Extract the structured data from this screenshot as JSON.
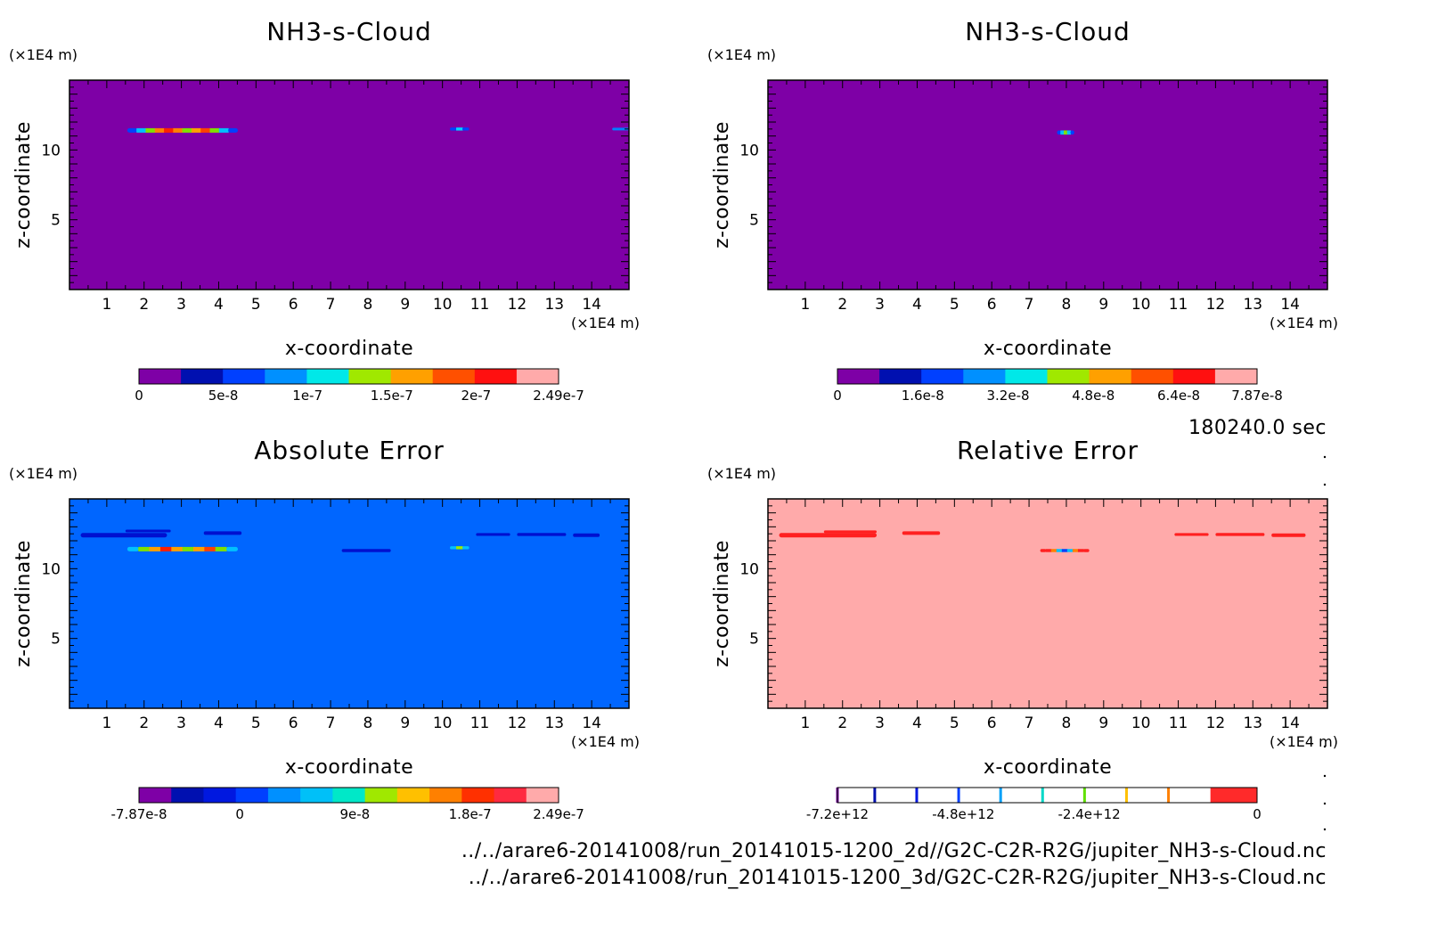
{
  "figure": {
    "time_label": "180240.0 sec",
    "files": [
      "../../arare6-20141008/run_20141015-1200_2d//G2C-C2R-R2G/jupiter_NH3-s-Cloud.nc",
      "../../arare6-20141008/run_20141015-1200_3d/G2C-C2R-R2G/jupiter_NH3-s-Cloud.nc"
    ]
  },
  "chart_data": [
    {
      "id": "p1",
      "type": "heatmap",
      "title": "NH3-s-Cloud",
      "xlabel": "x-coordinate",
      "ylabel": "z-coordinate",
      "x_unit": "(×1E4 m)",
      "y_unit": "(×1E4 m)",
      "xlim": [
        0,
        15
      ],
      "ylim": [
        0,
        15
      ],
      "x_ticks": [
        1,
        2,
        3,
        4,
        5,
        6,
        7,
        8,
        9,
        10,
        11,
        12,
        13,
        14
      ],
      "y_ticks": [
        5,
        10
      ],
      "background_color": "#7E00A6",
      "features": [
        {
          "x0": 1.55,
          "x1": 4.5,
          "z": 11.4,
          "dz": 0.32,
          "colors": [
            "#0040FF",
            "#00C0FF",
            "#80E000",
            "#FF8000",
            "#FF2000",
            "#FF8000",
            "#80E000",
            "#FFA000",
            "#FF4000",
            "#80E000",
            "#00C0FF",
            "#0040FF"
          ]
        },
        {
          "x0": 10.2,
          "x1": 10.7,
          "z": 11.5,
          "dz": 0.22,
          "colors": [
            "#0040FF",
            "#00D0FF",
            "#0040FF"
          ]
        },
        {
          "x0": 14.55,
          "x1": 15.0,
          "z": 11.5,
          "dz": 0.08,
          "colors": [
            "#0080FF"
          ]
        }
      ],
      "colorbar": {
        "type": "discrete",
        "colors": [
          "#7E00A6",
          "#0010B0",
          "#0040FF",
          "#0090FF",
          "#00E8E8",
          "#A0E800",
          "#FFA000",
          "#FF5000",
          "#FF1010",
          "#FFAAAA"
        ],
        "ticks": [
          {
            "label": "0",
            "frac": 0.0
          },
          {
            "label": "5e-8",
            "frac": 0.2008
          },
          {
            "label": "1e-7",
            "frac": 0.4016
          },
          {
            "label": "1.5e-7",
            "frac": 0.6024
          },
          {
            "label": "2e-7",
            "frac": 0.8032
          },
          {
            "label": "2.49e-7",
            "frac": 1.0
          }
        ]
      }
    },
    {
      "id": "p2",
      "type": "heatmap",
      "title": "NH3-s-Cloud",
      "xlabel": "x-coordinate",
      "ylabel": "z-coordinate",
      "x_unit": "(×1E4 m)",
      "y_unit": "(×1E4 m)",
      "xlim": [
        0,
        15
      ],
      "ylim": [
        0,
        15
      ],
      "x_ticks": [
        1,
        2,
        3,
        4,
        5,
        6,
        7,
        8,
        9,
        10,
        11,
        12,
        13,
        14
      ],
      "y_ticks": [
        5,
        10
      ],
      "background_color": "#7E00A6",
      "features": [
        {
          "x0": 7.75,
          "x1": 8.2,
          "z": 11.25,
          "dz": 0.3,
          "colors": [
            "#0040FF",
            "#00C0FF",
            "#80E000",
            "#00C0FF",
            "#0040FF"
          ]
        }
      ],
      "colorbar": {
        "type": "discrete",
        "colors": [
          "#7E00A6",
          "#0010B0",
          "#0040FF",
          "#0090FF",
          "#00E8E8",
          "#A0E800",
          "#FFA000",
          "#FF5000",
          "#FF1010",
          "#FFAAAA"
        ],
        "ticks": [
          {
            "label": "0",
            "frac": 0.0
          },
          {
            "label": "1.6e-8",
            "frac": 0.2033
          },
          {
            "label": "3.2e-8",
            "frac": 0.4066
          },
          {
            "label": "4.8e-8",
            "frac": 0.6099
          },
          {
            "label": "6.4e-8",
            "frac": 0.8132
          },
          {
            "label": "7.87e-8",
            "frac": 1.0
          }
        ]
      }
    },
    {
      "id": "p3",
      "type": "heatmap",
      "title": "Absolute Error",
      "xlabel": "x-coordinate",
      "ylabel": "z-coordinate",
      "x_unit": "(×1E4 m)",
      "y_unit": "(×1E4 m)",
      "xlim": [
        0,
        15
      ],
      "ylim": [
        0,
        15
      ],
      "x_ticks": [
        1,
        2,
        3,
        4,
        5,
        6,
        7,
        8,
        9,
        10,
        11,
        12,
        13,
        14
      ],
      "y_ticks": [
        5,
        10
      ],
      "background_color": "#0066FF",
      "features": [
        {
          "x0": 0.3,
          "x1": 2.6,
          "z": 12.4,
          "dz": 0.32,
          "colors": [
            "#0010D0"
          ]
        },
        {
          "x0": 1.5,
          "x1": 2.7,
          "z": 12.7,
          "dz": 0.18,
          "colors": [
            "#0010D0"
          ]
        },
        {
          "x0": 3.6,
          "x1": 4.6,
          "z": 12.55,
          "dz": 0.25,
          "colors": [
            "#0010D0"
          ]
        },
        {
          "x0": 1.55,
          "x1": 4.5,
          "z": 11.4,
          "dz": 0.32,
          "colors": [
            "#00C0FF",
            "#80E000",
            "#FFA000",
            "#FF2000",
            "#FFA000",
            "#80E000",
            "#FFA000",
            "#FF4000",
            "#80E000",
            "#00C0FF"
          ]
        },
        {
          "x0": 7.3,
          "x1": 8.6,
          "z": 11.3,
          "dz": 0.22,
          "colors": [
            "#0010D0"
          ]
        },
        {
          "x0": 10.2,
          "x1": 10.7,
          "z": 11.5,
          "dz": 0.22,
          "colors": [
            "#00C0FF",
            "#A0E800",
            "#00C0FF"
          ]
        },
        {
          "x0": 10.9,
          "x1": 11.8,
          "z": 12.45,
          "dz": 0.2,
          "colors": [
            "#0010D0"
          ]
        },
        {
          "x0": 12.0,
          "x1": 13.3,
          "z": 12.45,
          "dz": 0.22,
          "colors": [
            "#0010D0"
          ]
        },
        {
          "x0": 13.5,
          "x1": 14.2,
          "z": 12.4,
          "dz": 0.25,
          "colors": [
            "#0010D0"
          ]
        }
      ],
      "colorbar": {
        "type": "discrete",
        "colors": [
          "#7E00A6",
          "#0010B0",
          "#0018E0",
          "#0040FF",
          "#0090FF",
          "#00C0F8",
          "#00E8C8",
          "#A0E800",
          "#FFC000",
          "#FF8000",
          "#FF3000",
          "#FF2A40",
          "#FFAAAA"
        ],
        "ticks": [
          {
            "label": "-7.87e-8",
            "frac": 0.0
          },
          {
            "label": "0",
            "frac": 0.2401
          },
          {
            "label": "9e-8",
            "frac": 0.5146
          },
          {
            "label": "1.8e-7",
            "frac": 0.7891
          },
          {
            "label": "2.49e-7",
            "frac": 1.0
          }
        ]
      }
    },
    {
      "id": "p4",
      "type": "heatmap",
      "title": "Relative Error",
      "xlabel": "x-coordinate",
      "ylabel": "z-coordinate",
      "x_unit": "(×1E4 m)",
      "y_unit": "(×1E4 m)",
      "xlim": [
        0,
        15
      ],
      "ylim": [
        0,
        15
      ],
      "x_ticks": [
        1,
        2,
        3,
        4,
        5,
        6,
        7,
        8,
        9,
        10,
        11,
        12,
        13,
        14
      ],
      "y_ticks": [
        5,
        10
      ],
      "background_color": "#FFAAAA",
      "features": [
        {
          "x0": 0.3,
          "x1": 2.9,
          "z": 12.4,
          "dz": 0.32,
          "colors": [
            "#FF2020"
          ]
        },
        {
          "x0": 1.5,
          "x1": 2.9,
          "z": 12.65,
          "dz": 0.18,
          "colors": [
            "#FF2020"
          ]
        },
        {
          "x0": 3.6,
          "x1": 4.6,
          "z": 12.55,
          "dz": 0.25,
          "colors": [
            "#FF2020"
          ]
        },
        {
          "x0": 7.3,
          "x1": 8.6,
          "z": 11.3,
          "dz": 0.22,
          "colors": [
            "#FF2020",
            "#FF2020",
            "#FF8000",
            "#00C0FF",
            "#0040FF",
            "#00C0FF",
            "#FF8000",
            "#FF2020",
            "#FF2020"
          ]
        },
        {
          "x0": 10.9,
          "x1": 11.8,
          "z": 12.45,
          "dz": 0.2,
          "colors": [
            "#FF2020"
          ]
        },
        {
          "x0": 12.0,
          "x1": 13.3,
          "z": 12.45,
          "dz": 0.22,
          "colors": [
            "#FF2020"
          ]
        },
        {
          "x0": 13.5,
          "x1": 14.4,
          "z": 12.4,
          "dz": 0.25,
          "colors": [
            "#FF2020"
          ]
        }
      ],
      "colorbar": {
        "type": "lines",
        "fill": "#FFFFFF",
        "end_color": "#FF2A2A",
        "end_frac": 0.8889,
        "line_marks": [
          {
            "frac": 0.0,
            "color": "#7E00A6"
          },
          {
            "frac": 0.0889,
            "color": "#0010B0"
          },
          {
            "frac": 0.1889,
            "color": "#0018E0"
          },
          {
            "frac": 0.2889,
            "color": "#0040FF"
          },
          {
            "frac": 0.3889,
            "color": "#00A0F8"
          },
          {
            "frac": 0.4889,
            "color": "#00D8C8"
          },
          {
            "frac": 0.5889,
            "color": "#60E000"
          },
          {
            "frac": 0.6889,
            "color": "#FFC000"
          },
          {
            "frac": 0.7889,
            "color": "#FF8000"
          }
        ],
        "ticks": [
          {
            "label": "-7.2e+12",
            "frac": 0.0
          },
          {
            "label": "-4.8e+12",
            "frac": 0.3
          },
          {
            "label": "-2.4e+12",
            "frac": 0.6
          },
          {
            "label": "0",
            "frac": 1.0
          }
        ]
      }
    }
  ]
}
